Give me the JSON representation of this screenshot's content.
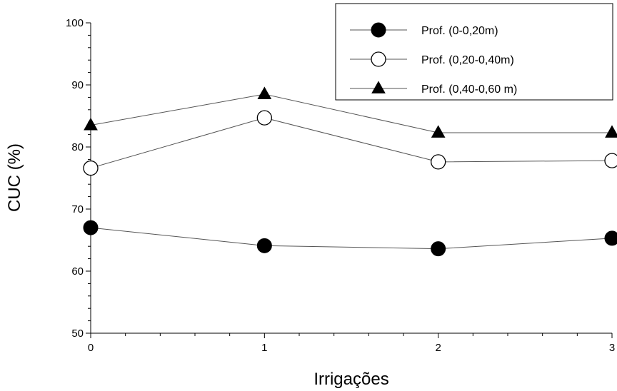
{
  "chart_data": {
    "type": "line",
    "title": "",
    "xlabel": "Irrigações",
    "ylabel": "CUC (%)",
    "x": [
      0,
      1,
      2,
      3
    ],
    "xticks": [
      "0",
      "1",
      "2",
      "3"
    ],
    "yticks": [
      "50",
      "60",
      "70",
      "80",
      "90",
      "100"
    ],
    "xlim": [
      0,
      3
    ],
    "ylim": [
      50,
      100
    ],
    "grid": false,
    "legend_position": "top-right",
    "series": [
      {
        "name": "Prof. (0-0,20m)",
        "marker": "filled-circle",
        "values": [
          67.0,
          64.1,
          63.6,
          65.3
        ]
      },
      {
        "name": "Prof. (0,20-0,40m)",
        "marker": "open-circle",
        "values": [
          76.6,
          84.7,
          77.6,
          77.8
        ]
      },
      {
        "name": "Prof. (0,40-0,60 m)",
        "marker": "filled-triangle",
        "values": [
          83.5,
          88.5,
          82.3,
          82.3
        ]
      }
    ],
    "colors": {
      "line": "#555555",
      "marker": "#000000",
      "axis": "#000000"
    }
  }
}
